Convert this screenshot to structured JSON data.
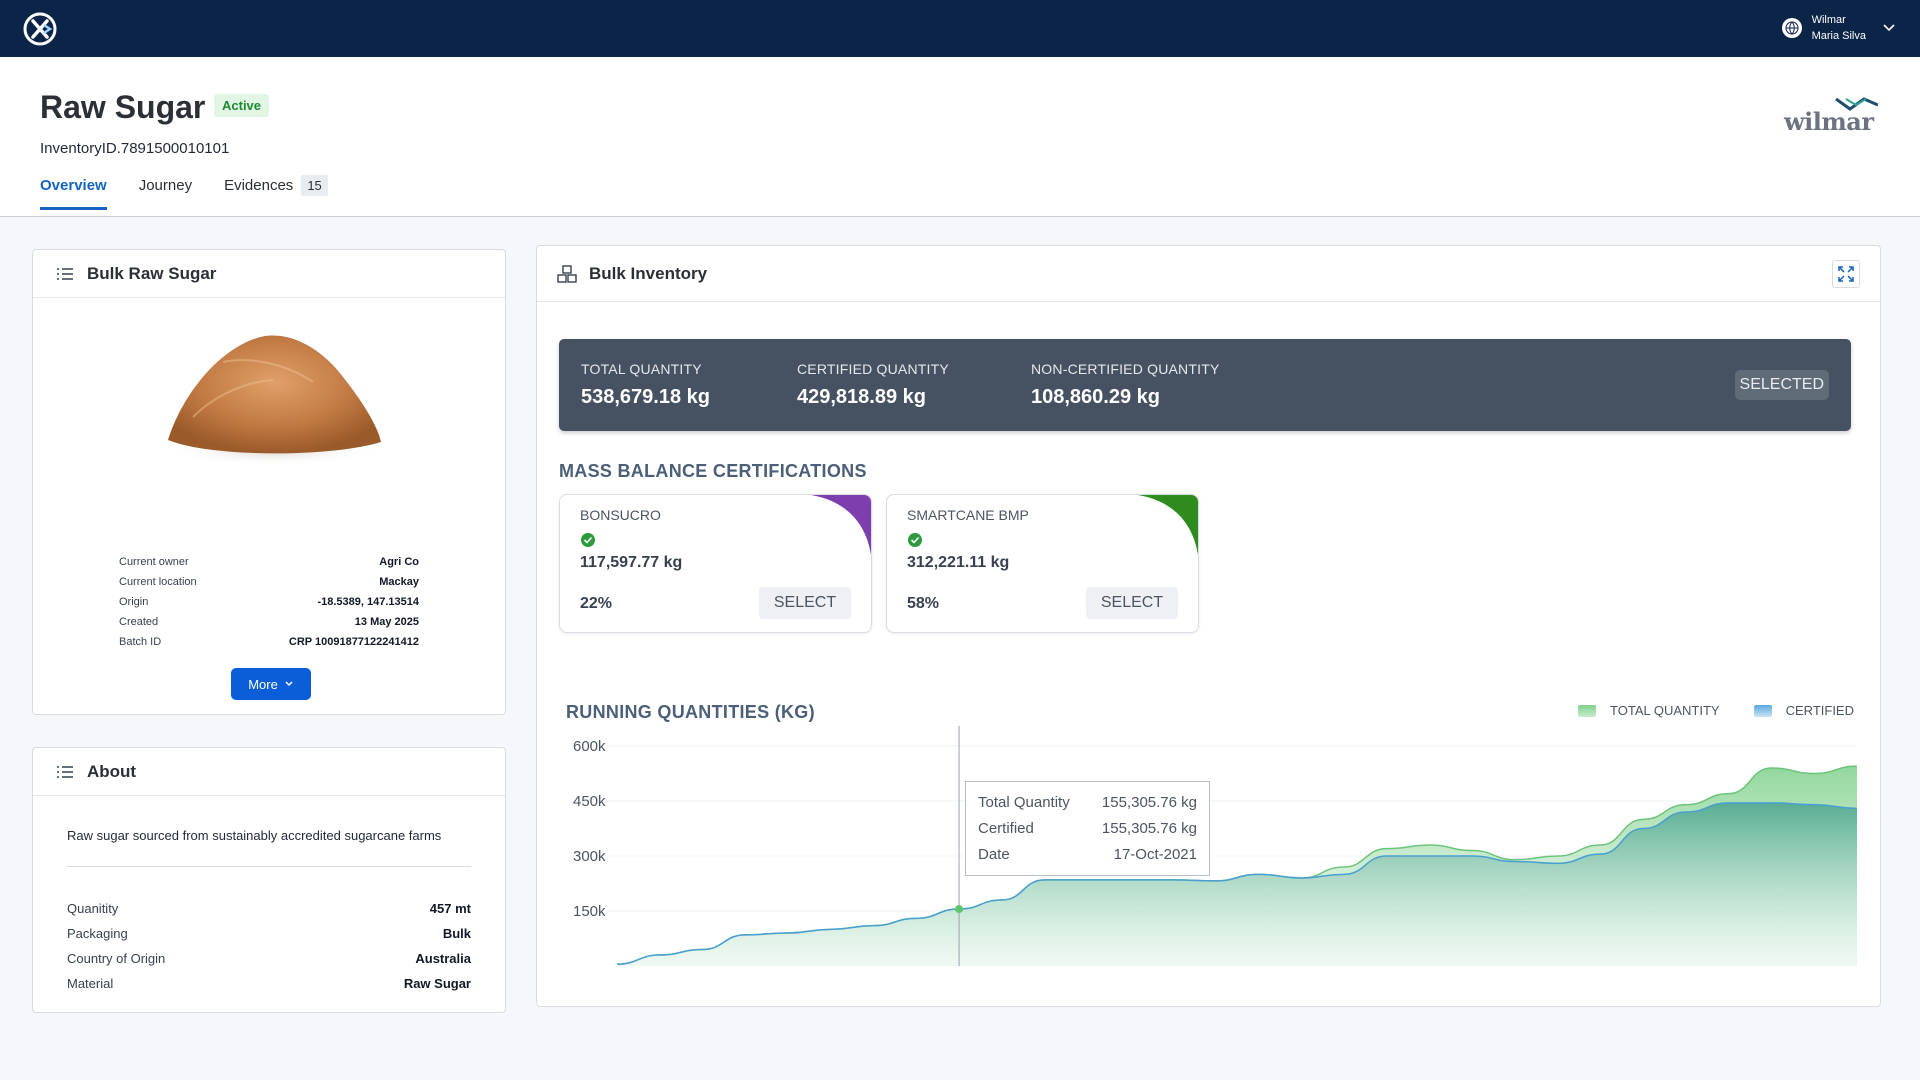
{
  "topbar": {
    "logo_icon": "x-logo-icon",
    "user": {
      "line1": "Wilmar",
      "line2": "Maria Silva",
      "avatar_icon": "globe-icon",
      "menu_icon": "chevron-down-icon"
    }
  },
  "header": {
    "title": "Raw Sugar",
    "status": "Active",
    "inventory_id": "InventoryID.7891500010101",
    "brand": "wilmar",
    "tabs": [
      {
        "label": "Overview",
        "active": true
      },
      {
        "label": "Journey",
        "active": false
      },
      {
        "label": "Evidences",
        "active": false,
        "count": "15"
      }
    ]
  },
  "product": {
    "title": "Bulk Raw Sugar",
    "details": [
      {
        "label": "Current owner",
        "value": "Agri Co"
      },
      {
        "label": "Current location",
        "value": "Mackay"
      },
      {
        "label": "Origin",
        "value": "-18.5389, 147.13514"
      },
      {
        "label": "Created",
        "value": "13 May 2025"
      },
      {
        "label": "Batch ID",
        "value": "CRP 10091877122241412"
      }
    ],
    "more_label": "More"
  },
  "about": {
    "title": "About",
    "description": "Raw sugar sourced from sustainably accredited sugarcane farms",
    "rows": [
      {
        "label": "Quanitity",
        "value": "457 mt"
      },
      {
        "label": "Packaging",
        "value": "Bulk"
      },
      {
        "label": "Country of Origin",
        "value": "Australia"
      },
      {
        "label": "Material",
        "value": "Raw Sugar"
      }
    ]
  },
  "inventory": {
    "title": "Bulk Inventory",
    "summary": {
      "total_label": "TOTAL QUANTITY",
      "total_value": "538,679.18 kg",
      "certified_label": "CERTIFIED QUANTITY",
      "certified_value": "429,818.89 kg",
      "noncert_label": "NON-CERTIFIED QUANTITY",
      "noncert_value": "108,860.29 kg",
      "selected_label": "SELECTED"
    },
    "mass_balance_title": "MASS BALANCE CERTIFICATIONS",
    "certifications": [
      {
        "name": "BONSUCRO",
        "quantity": "117,597.77 kg",
        "percent": "22%",
        "select_label": "SELECT",
        "color": "#7e3fae"
      },
      {
        "name": "SMARTCANE BMP",
        "quantity": "312,221.11 kg",
        "percent": "58%",
        "select_label": "SELECT",
        "color": "#2e8b1e"
      }
    ],
    "tooltip": {
      "rows": [
        {
          "label": "Total Quantity",
          "value": "155,305.76 kg"
        },
        {
          "label": "Certified",
          "value": "155,305.76 kg"
        },
        {
          "label": "Date",
          "value": "17-Oct-2021"
        }
      ]
    }
  },
  "chart_data": {
    "type": "area",
    "title": "RUNNING QUANTITIES (KG)",
    "ylim": [
      0,
      600000
    ],
    "yticks": [
      "600k",
      "450k",
      "300k",
      "150k"
    ],
    "ytick_values": [
      600000,
      450000,
      300000,
      150000
    ],
    "legend_position": "top-right",
    "series": [
      {
        "name": "TOTAL QUANTITY",
        "color": "#7ed08a",
        "values": [
          5000,
          30000,
          45000,
          85000,
          90000,
          100000,
          110000,
          130000,
          155305,
          180000,
          235000,
          235000,
          235000,
          235000,
          232000,
          250000,
          240000,
          270000,
          320000,
          330000,
          315000,
          290000,
          300000,
          330000,
          400000,
          440000,
          470000,
          540000,
          525000,
          545000
        ]
      },
      {
        "name": "CERTIFIED",
        "color": "#6ab7e0",
        "values": [
          5000,
          30000,
          45000,
          85000,
          90000,
          100000,
          110000,
          130000,
          155305,
          180000,
          235000,
          235000,
          235000,
          235000,
          232000,
          250000,
          240000,
          250000,
          300000,
          300000,
          300000,
          285000,
          280000,
          305000,
          375000,
          420000,
          445000,
          445000,
          440000,
          430000
        ]
      }
    ],
    "hover_index": 8
  }
}
